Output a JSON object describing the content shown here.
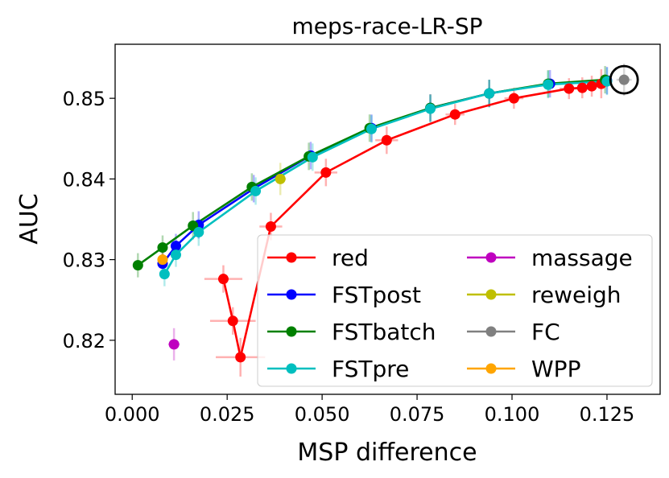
{
  "chart_data": {
    "type": "scatter",
    "title": "meps-race-LR-SP",
    "xlabel": "MSP difference",
    "ylabel": "AUC",
    "xlim": [
      -0.0045,
      0.139
    ],
    "ylim": [
      0.8133,
      0.8567
    ],
    "xticks": [
      {
        "value": 0.0,
        "label": "0.000"
      },
      {
        "value": 0.025,
        "label": "0.025"
      },
      {
        "value": 0.05,
        "label": "0.050"
      },
      {
        "value": 0.075,
        "label": "0.075"
      },
      {
        "value": 0.1,
        "label": "0.100"
      },
      {
        "value": 0.125,
        "label": "0.125"
      }
    ],
    "yticks": [
      {
        "value": 0.82,
        "label": "0.82"
      },
      {
        "value": 0.83,
        "label": "0.83"
      },
      {
        "value": 0.84,
        "label": "0.84"
      },
      {
        "value": 0.85,
        "label": "0.85"
      }
    ],
    "legend_position": "lower-right",
    "legend_columns": 2,
    "series": [
      {
        "name": "red",
        "color": "#ff0000",
        "connect": true,
        "points": [
          {
            "x": 0.024,
            "y": 0.8276,
            "xerr": 0.005,
            "yerr": 0.0017
          },
          {
            "x": 0.0265,
            "y": 0.8224,
            "xerr": 0.006,
            "yerr": 0.0017
          },
          {
            "x": 0.0285,
            "y": 0.8179,
            "xerr": 0.0065,
            "yerr": 0.0024
          },
          {
            "x": 0.0365,
            "y": 0.8341,
            "xerr": 0.003,
            "yerr": 0.0017
          },
          {
            "x": 0.051,
            "y": 0.8408,
            "xerr": 0.003,
            "yerr": 0.0017
          },
          {
            "x": 0.067,
            "y": 0.8448,
            "xerr": 0.003,
            "yerr": 0.0017
          },
          {
            "x": 0.085,
            "y": 0.848,
            "xerr": 0.0025,
            "yerr": 0.0013
          },
          {
            "x": 0.1005,
            "y": 0.85,
            "xerr": 0.0025,
            "yerr": 0.0013
          },
          {
            "x": 0.115,
            "y": 0.8512,
            "xerr": 0.0025,
            "yerr": 0.0013
          },
          {
            "x": 0.1185,
            "y": 0.8513,
            "xerr": 0.0015,
            "yerr": 0.0013
          },
          {
            "x": 0.121,
            "y": 0.8515,
            "xerr": 0.0015,
            "yerr": 0.0013
          },
          {
            "x": 0.1235,
            "y": 0.8518,
            "xerr": 0.0015,
            "yerr": 0.0018
          }
        ]
      },
      {
        "name": "FSTpost",
        "color": "#0000ff",
        "connect": true,
        "points": [
          {
            "x": 0.008,
            "y": 0.8295,
            "xerr": 0.0008,
            "yerr": 0.0015
          },
          {
            "x": 0.0115,
            "y": 0.8317,
            "xerr": 0.0008,
            "yerr": 0.0015
          },
          {
            "x": 0.0175,
            "y": 0.8343,
            "xerr": 0.001,
            "yerr": 0.0017
          },
          {
            "x": 0.032,
            "y": 0.8388,
            "xerr": 0.001,
            "yerr": 0.0017
          },
          {
            "x": 0.047,
            "y": 0.8429,
            "xerr": 0.001,
            "yerr": 0.0017
          },
          {
            "x": 0.063,
            "y": 0.8463,
            "xerr": 0.001,
            "yerr": 0.0017
          },
          {
            "x": 0.0785,
            "y": 0.8488,
            "xerr": 0.001,
            "yerr": 0.0017
          },
          {
            "x": 0.094,
            "y": 0.8506,
            "xerr": 0.001,
            "yerr": 0.0017
          },
          {
            "x": 0.11,
            "y": 0.8518,
            "xerr": 0.001,
            "yerr": 0.0017
          },
          {
            "x": 0.125,
            "y": 0.8522,
            "xerr": 0.001,
            "yerr": 0.0017
          }
        ]
      },
      {
        "name": "FSTbatch",
        "color": "#008000",
        "connect": true,
        "points": [
          {
            "x": 0.0015,
            "y": 0.8293,
            "xerr": 0.0008,
            "yerr": 0.0015
          },
          {
            "x": 0.008,
            "y": 0.8315,
            "xerr": 0.0008,
            "yerr": 0.0015
          },
          {
            "x": 0.016,
            "y": 0.8342,
            "xerr": 0.001,
            "yerr": 0.0017
          },
          {
            "x": 0.0315,
            "y": 0.839,
            "xerr": 0.001,
            "yerr": 0.0017
          },
          {
            "x": 0.0465,
            "y": 0.8428,
            "xerr": 0.001,
            "yerr": 0.0017
          },
          {
            "x": 0.0625,
            "y": 0.8463,
            "xerr": 0.001,
            "yerr": 0.0017
          },
          {
            "x": 0.0785,
            "y": 0.8488,
            "xerr": 0.001,
            "yerr": 0.0017
          },
          {
            "x": 0.094,
            "y": 0.8506,
            "xerr": 0.001,
            "yerr": 0.0017
          },
          {
            "x": 0.1095,
            "y": 0.8518,
            "xerr": 0.001,
            "yerr": 0.0017
          },
          {
            "x": 0.1245,
            "y": 0.8523,
            "xerr": 0.001,
            "yerr": 0.0017
          }
        ]
      },
      {
        "name": "FSTpre",
        "color": "#00bfbf",
        "connect": true,
        "points": [
          {
            "x": 0.0085,
            "y": 0.8282,
            "xerr": 0.0008,
            "yerr": 0.0015
          },
          {
            "x": 0.0115,
            "y": 0.8306,
            "xerr": 0.0008,
            "yerr": 0.0015
          },
          {
            "x": 0.0175,
            "y": 0.8334,
            "xerr": 0.001,
            "yerr": 0.0017
          },
          {
            "x": 0.0325,
            "y": 0.8385,
            "xerr": 0.001,
            "yerr": 0.0017
          },
          {
            "x": 0.0475,
            "y": 0.8427,
            "xerr": 0.001,
            "yerr": 0.0017
          },
          {
            "x": 0.063,
            "y": 0.8462,
            "xerr": 0.001,
            "yerr": 0.0017
          },
          {
            "x": 0.0785,
            "y": 0.8487,
            "xerr": 0.001,
            "yerr": 0.0017
          },
          {
            "x": 0.094,
            "y": 0.8506,
            "xerr": 0.001,
            "yerr": 0.0017
          },
          {
            "x": 0.1095,
            "y": 0.8517,
            "xerr": 0.001,
            "yerr": 0.0017
          },
          {
            "x": 0.125,
            "y": 0.8521,
            "xerr": 0.001,
            "yerr": 0.0017
          }
        ]
      },
      {
        "name": "massage",
        "color": "#bf00bf",
        "connect": false,
        "points": [
          {
            "x": 0.011,
            "y": 0.8195,
            "xerr": 0.0015,
            "yerr": 0.002
          }
        ]
      },
      {
        "name": "reweigh",
        "color": "#bfbf00",
        "connect": false,
        "points": [
          {
            "x": 0.039,
            "y": 0.84,
            "xerr": 0.0015,
            "yerr": 0.002
          }
        ]
      },
      {
        "name": "FC",
        "color": "#808080",
        "connect": false,
        "points": [
          {
            "x": 0.1295,
            "y": 0.8523,
            "xerr": 0.002,
            "yerr": 0.002
          }
        ]
      },
      {
        "name": "WPP",
        "color": "#ffa500",
        "connect": false,
        "points": [
          {
            "x": 0.008,
            "y": 0.83,
            "xerr": 0.0008,
            "yerr": 0.001
          }
        ]
      }
    ],
    "highlight": {
      "x": 0.1295,
      "y": 0.8523,
      "shape": "circle",
      "color": "#000000"
    }
  }
}
